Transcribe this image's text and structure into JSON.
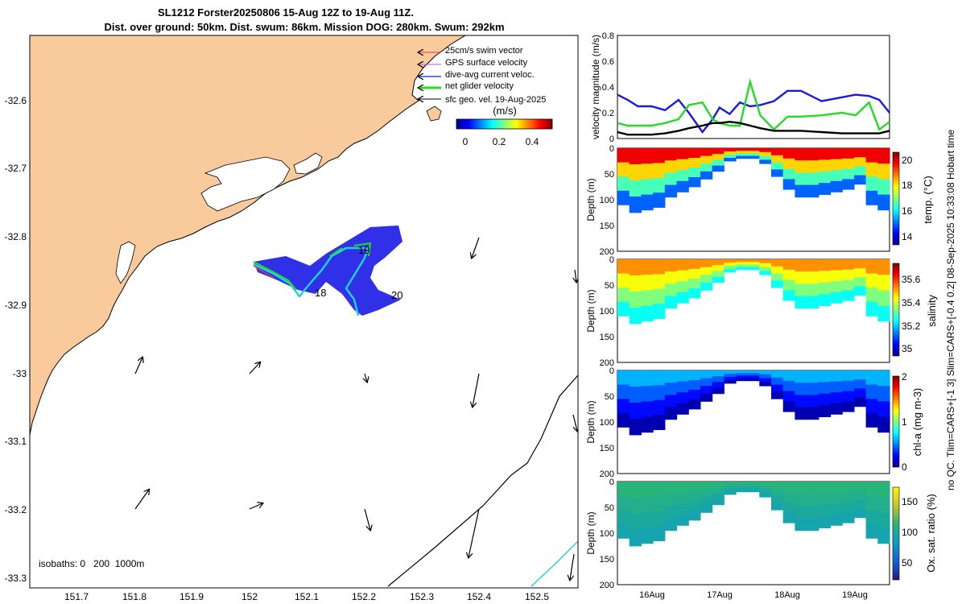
{
  "title": {
    "line1": "SL1212 Forster20250806 15-Aug 12Z to 19-Aug 11Z.",
    "line2": "Dist. over ground: 50km. Dist. swum: 86km. Mission DOG: 280km. Swum: 292km"
  },
  "side_note": "no QC. Tlim=CARS+[-1 3] Slim=CARS+[-0.4 0.2] 08-Sep-2025 10:33:08 Hobart time",
  "colors": {
    "land": "#F9CB9C",
    "swim": "#E8383C",
    "gps": "#E040E0",
    "dive": "#1A1AE6",
    "net": "#22DD22",
    "sfc": "#000000",
    "track": "#20D0E0"
  },
  "map": {
    "isobaths_label": "isobaths: 0   200  1000m",
    "xlim": [
      151.62,
      152.58
    ],
    "ylim": [
      -33.32,
      -32.52
    ],
    "x_ticks": [
      "151.7",
      "151.8",
      "151.9",
      "152",
      "152.1",
      "152.2",
      "152.3",
      "152.4",
      "152.5"
    ],
    "y_ticks": [
      "-32.6",
      "-32.7",
      "-32.8",
      "-32.9",
      "-33",
      "-33.1",
      "-33.2",
      "-33.3"
    ],
    "day_labels": [
      "19",
      "18",
      "20"
    ],
    "legend": {
      "items": [
        "25cm/s swim vector",
        "GPS surface velocity",
        "dive-avg current veloc.",
        "net glider velocity",
        "sfc geo. vel. 19-Aug-2025"
      ],
      "colorbar_label": "(m/s)",
      "colorbar_ticks": [
        "0",
        "0.2",
        "0.4"
      ]
    }
  },
  "chart_data": [
    {
      "type": "line",
      "ylabel": "velocity magnitude (m/s)",
      "ylim": [
        0,
        0.8
      ],
      "y_ticks": [
        "0",
        "0.2",
        "0.4",
        "0.6",
        "0.8"
      ],
      "x": [
        15.5,
        15.65,
        15.8,
        16.0,
        16.2,
        16.4,
        16.55,
        16.75,
        16.9,
        17.0,
        17.15,
        17.3,
        17.45,
        17.6,
        17.8,
        18.0,
        18.2,
        18.5,
        18.8,
        19.0,
        19.2,
        19.35,
        19.5
      ],
      "series": [
        {
          "color": "#1A1AE6",
          "values": [
            0.34,
            0.3,
            0.25,
            0.25,
            0.22,
            0.3,
            0.2,
            0.05,
            0.15,
            0.24,
            0.19,
            0.28,
            0.25,
            0.26,
            0.29,
            0.37,
            0.37,
            0.29,
            0.32,
            0.34,
            0.33,
            0.3,
            0.2
          ]
        },
        {
          "color": "#22DD22",
          "values": [
            0.12,
            0.1,
            0.1,
            0.1,
            0.12,
            0.15,
            0.26,
            0.28,
            0.15,
            0.12,
            0.1,
            0.1,
            0.44,
            0.18,
            0.07,
            0.17,
            0.17,
            0.18,
            0.2,
            0.18,
            0.28,
            0.07,
            0.13
          ]
        },
        {
          "color": "#000000",
          "values": [
            0.05,
            0.03,
            0.03,
            0.03,
            0.04,
            0.06,
            0.08,
            0.1,
            0.12,
            0.12,
            0.13,
            0.12,
            0.1,
            0.08,
            0.06,
            0.06,
            0.06,
            0.05,
            0.04,
            0.04,
            0.04,
            0.04,
            0.06
          ]
        }
      ]
    },
    {
      "type": "heatmap",
      "ylabel": "Depth (m)",
      "y_ticks": [
        "0",
        "50",
        "100",
        "150",
        "200"
      ],
      "colorbar_label": "temp. (°C)",
      "colorbar_ticks": [
        "20",
        "18",
        "16",
        "14"
      ],
      "clim": [
        13.4,
        20.6
      ],
      "profile_bottom_depth_m": [
        110,
        125,
        120,
        115,
        95,
        85,
        75,
        60,
        45,
        25,
        20,
        20,
        30,
        55,
        80,
        95,
        95,
        90,
        85,
        80,
        70,
        110,
        120
      ],
      "surface_value": 19.8,
      "deep_value": 15.0
    },
    {
      "type": "heatmap",
      "ylabel": "Depth (m)",
      "y_ticks": [
        "0",
        "50",
        "100",
        "150",
        "200"
      ],
      "colorbar_label": "salinity",
      "colorbar_ticks": [
        "35.6",
        "35.4",
        "35.2",
        "35"
      ],
      "clim": [
        34.87,
        35.73
      ],
      "surface_value": 35.5,
      "deep_value": 35.2
    },
    {
      "type": "heatmap",
      "ylabel": "Depth (m)",
      "y_ticks": [
        "0",
        "50",
        "100",
        "150",
        "200"
      ],
      "colorbar_label": "chl-a (mg m-3)",
      "colorbar_ticks": [
        "2",
        "1",
        "0"
      ],
      "clim": [
        0,
        2
      ],
      "surface_value": 0.6,
      "deep_value": 0.1
    },
    {
      "type": "heatmap",
      "ylabel": "Depth (m)",
      "y_ticks": [
        "0",
        "50",
        "100",
        "150",
        "200"
      ],
      "x_ticks": [
        "16Aug",
        "17Aug",
        "18Aug",
        "19Aug"
      ],
      "colorbar_label": "Ox. sat. ratio (%)",
      "colorbar_ticks": [
        "150",
        "100",
        "50"
      ],
      "clim": [
        25,
        175
      ],
      "surface_value": 115,
      "deep_value": 95
    }
  ]
}
